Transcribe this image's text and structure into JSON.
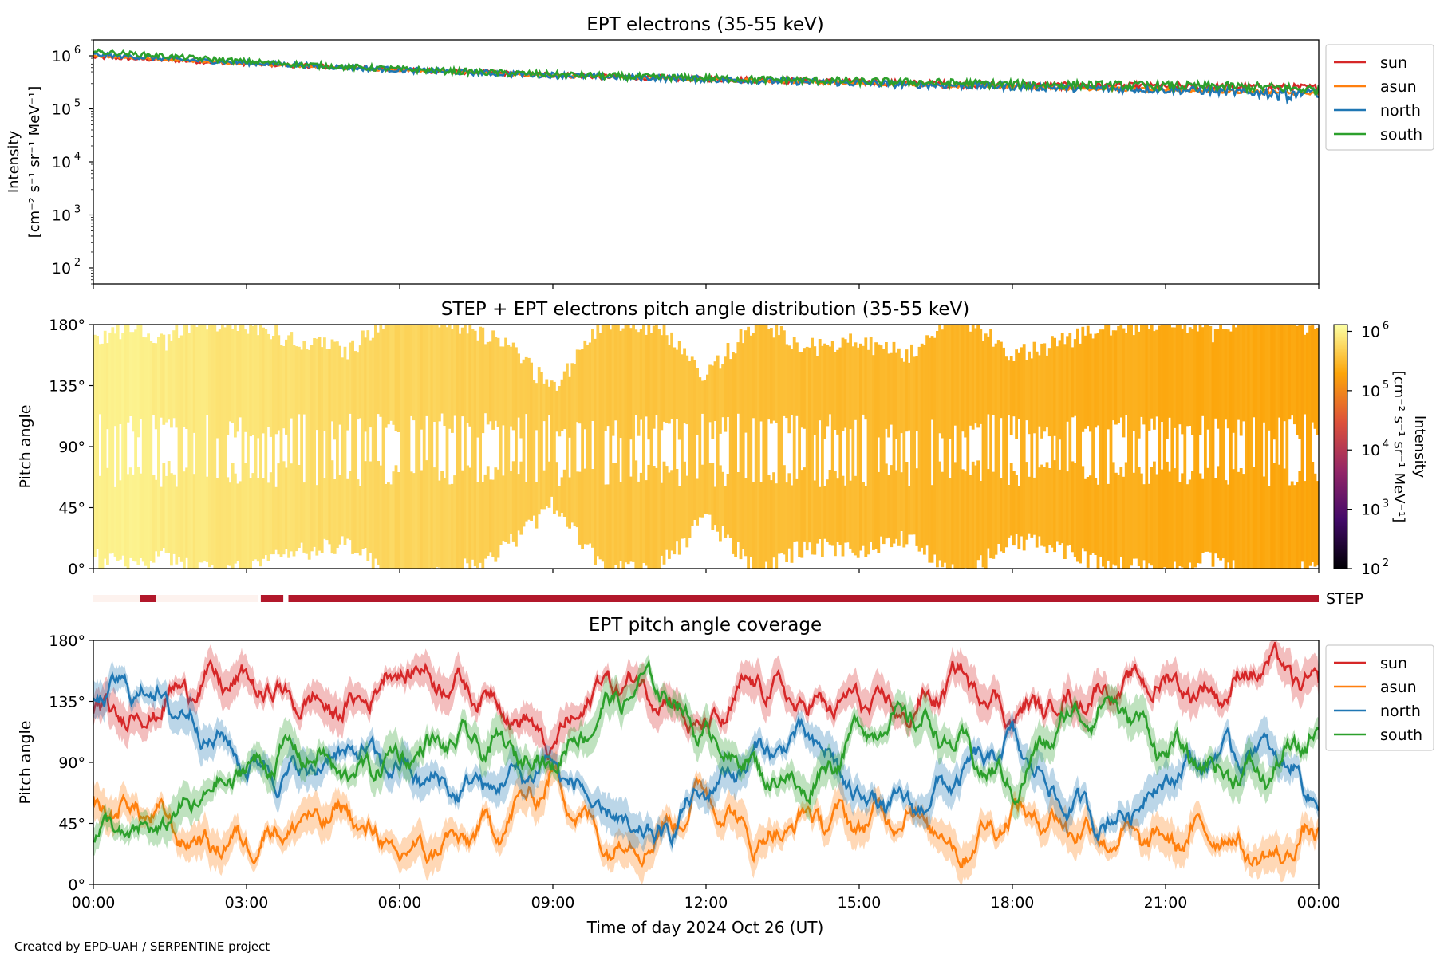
{
  "chart_data": [
    {
      "type": "line",
      "title": "EPT electrons (35-55 keV)",
      "ylabel_line1": "Intensity",
      "ylabel_line2": "[cm⁻² s⁻¹ sr⁻¹ MeV⁻¹]",
      "yscale": "log",
      "ylim": [
        50,
        2000000
      ],
      "yticks": [
        {
          "base": "10",
          "exp": "6",
          "value": 1000000
        },
        {
          "base": "10",
          "exp": "5",
          "value": 100000
        },
        {
          "base": "10",
          "exp": "4",
          "value": 10000
        },
        {
          "base": "10",
          "exp": "3",
          "value": 1000
        },
        {
          "base": "10",
          "exp": "2",
          "value": 100
        }
      ],
      "xlim_hours": [
        0,
        24
      ],
      "legend_placement": "outside-right",
      "series": [
        {
          "name": "sun",
          "color": "#d62728",
          "x": [
            0,
            1,
            2,
            3,
            4,
            5,
            6,
            7,
            8,
            9,
            10,
            11,
            12,
            13,
            14,
            15,
            16,
            17,
            18,
            19,
            20,
            21,
            22,
            23,
            24
          ],
          "y": [
            950000,
            870000,
            790000,
            720000,
            660000,
            600000,
            550000,
            510000,
            470000,
            440000,
            410000,
            390000,
            370000,
            350000,
            335000,
            320000,
            305000,
            290000,
            280000,
            275000,
            270000,
            265000,
            262000,
            258000,
            250000
          ]
        },
        {
          "name": "asun",
          "color": "#ff7f0e",
          "x": [
            0,
            1,
            2,
            3,
            4,
            5,
            6,
            7,
            8,
            9,
            10,
            11,
            12,
            13,
            14,
            15,
            16,
            17,
            18,
            19,
            20,
            21,
            22,
            23,
            24
          ],
          "y": [
            1000000,
            900000,
            800000,
            720000,
            650000,
            590000,
            540000,
            500000,
            460000,
            430000,
            400000,
            380000,
            360000,
            340000,
            320000,
            305000,
            290000,
            275000,
            262000,
            250000,
            238000,
            228000,
            218000,
            208000,
            190000
          ]
        },
        {
          "name": "north",
          "color": "#1f77b4",
          "x": [
            0,
            1,
            2,
            3,
            4,
            5,
            6,
            7,
            8,
            9,
            10,
            11,
            12,
            13,
            14,
            15,
            16,
            17,
            18,
            19,
            20,
            21,
            22,
            23,
            24
          ],
          "y": [
            1050000,
            930000,
            820000,
            740000,
            670000,
            600000,
            545000,
            500000,
            465000,
            435000,
            405000,
            385000,
            362000,
            342000,
            322000,
            306000,
            290000,
            276000,
            264000,
            252000,
            240000,
            230000,
            218000,
            190000,
            200000
          ]
        },
        {
          "name": "south",
          "color": "#2ca02c",
          "x": [
            0,
            1,
            2,
            3,
            4,
            5,
            6,
            7,
            8,
            9,
            10,
            11,
            12,
            13,
            14,
            15,
            16,
            17,
            18,
            19,
            20,
            21,
            22,
            23,
            24
          ],
          "y": [
            1200000,
            1050000,
            900000,
            780000,
            690000,
            615000,
            560000,
            515000,
            475000,
            445000,
            415000,
            395000,
            378000,
            360000,
            345000,
            330000,
            318000,
            305000,
            292000,
            285000,
            278000,
            272000,
            265000,
            255000,
            230000
          ]
        }
      ]
    },
    {
      "type": "heatmap",
      "title": "STEP + EPT electrons pitch angle distribution (35-55 keV)",
      "ylabel": "Pitch angle",
      "ylim": [
        0,
        180
      ],
      "yticks": [
        "0°",
        "45°",
        "90°",
        "135°",
        "180°"
      ],
      "xlim_hours": [
        0,
        24
      ],
      "colorbar": {
        "label_line1": "Intensity",
        "label_line2": "[cm⁻² s⁻¹ sr⁻¹ MeV⁻¹]",
        "scale": "log",
        "range": [
          100,
          1300000
        ],
        "ticks": [
          {
            "base": "10",
            "exp": "6",
            "value": 1000000
          },
          {
            "base": "10",
            "exp": "5",
            "value": 100000
          },
          {
            "base": "10",
            "exp": "4",
            "value": 10000
          },
          {
            "base": "10",
            "exp": "3",
            "value": 1000
          },
          {
            "base": "10",
            "exp": "2",
            "value": 100
          }
        ],
        "colormap": [
          "#000004",
          "#420a68",
          "#932667",
          "#dd513a",
          "#fca50a",
          "#fcffa4"
        ]
      },
      "intensity_hourly": [
        1000000,
        900000,
        800000,
        720000,
        650000,
        590000,
        540000,
        500000,
        460000,
        430000,
        400000,
        380000,
        360000,
        340000,
        320000,
        305000,
        290000,
        275000,
        262000,
        250000,
        238000,
        228000,
        218000,
        208000,
        190000
      ]
    },
    {
      "type": "bar",
      "label": "STEP",
      "segments": [
        {
          "start": 0.0,
          "end": 0.92,
          "state": "light",
          "color": "#fdf2ee"
        },
        {
          "start": 0.92,
          "end": 1.22,
          "state": "active",
          "color": "#b2182b"
        },
        {
          "start": 1.22,
          "end": 3.22,
          "state": "light",
          "color": "#fdf2ee"
        },
        {
          "start": 3.28,
          "end": 3.72,
          "state": "active",
          "color": "#b2182b"
        },
        {
          "start": 3.82,
          "end": 24.0,
          "state": "active",
          "color": "#b2182b"
        }
      ]
    },
    {
      "type": "line",
      "title": "EPT pitch angle coverage",
      "ylabel": "Pitch angle",
      "ylim": [
        0,
        180
      ],
      "yticks": [
        "0°",
        "45°",
        "90°",
        "135°",
        "180°"
      ],
      "xlabel": "Time of day 2024 Oct 26 (UT)",
      "xlim_hours": [
        0,
        24
      ],
      "xticks": [
        "00:00",
        "03:00",
        "06:00",
        "09:00",
        "12:00",
        "15:00",
        "18:00",
        "21:00",
        "00:00"
      ],
      "legend_placement": "outside-right",
      "series": [
        {
          "name": "sun",
          "color": "#d62728",
          "x": [
            0,
            1,
            2,
            3,
            4,
            5,
            6,
            7,
            8,
            9,
            10,
            11,
            12,
            13,
            14,
            15,
            16,
            17,
            18,
            19,
            20,
            21,
            22,
            23,
            24
          ],
          "y": [
            125,
            125,
            150,
            148,
            135,
            128,
            160,
            150,
            135,
            100,
            150,
            145,
            110,
            150,
            130,
            135,
            125,
            155,
            125,
            135,
            145,
            150,
            140,
            165,
            140
          ]
        },
        {
          "name": "asun",
          "color": "#ff7f0e",
          "x": [
            0,
            1,
            2,
            3,
            4,
            5,
            6,
            7,
            8,
            9,
            10,
            11,
            12,
            13,
            14,
            15,
            16,
            17,
            18,
            19,
            20,
            21,
            22,
            23,
            24
          ],
          "y": [
            55,
            55,
            30,
            32,
            45,
            52,
            20,
            30,
            45,
            80,
            30,
            35,
            70,
            30,
            50,
            45,
            55,
            25,
            55,
            45,
            35,
            30,
            40,
            15,
            40
          ]
        },
        {
          "name": "north",
          "color": "#1f77b4",
          "x": [
            0,
            1,
            2,
            3,
            4,
            5,
            6,
            7,
            8,
            9,
            10,
            11,
            12,
            13,
            14,
            15,
            16,
            17,
            18,
            19,
            20,
            21,
            22,
            23,
            24
          ],
          "y": [
            140,
            145,
            120,
            90,
            80,
            100,
            85,
            70,
            75,
            90,
            50,
            30,
            70,
            95,
            110,
            65,
            55,
            80,
            105,
            60,
            45,
            80,
            95,
            100,
            65
          ]
        },
        {
          "name": "south",
          "color": "#2ca02c",
          "x": [
            0,
            1,
            2,
            3,
            4,
            5,
            6,
            7,
            8,
            9,
            10,
            11,
            12,
            13,
            14,
            15,
            16,
            17,
            18,
            19,
            20,
            21,
            22,
            23,
            24
          ],
          "y": [
            40,
            35,
            60,
            85,
            100,
            80,
            95,
            105,
            100,
            90,
            130,
            150,
            110,
            85,
            70,
            115,
            125,
            100,
            70,
            120,
            135,
            100,
            85,
            80,
            115
          ]
        }
      ]
    }
  ],
  "footer": {
    "credit": "Created by EPD-UAH / SERPENTINE project"
  }
}
